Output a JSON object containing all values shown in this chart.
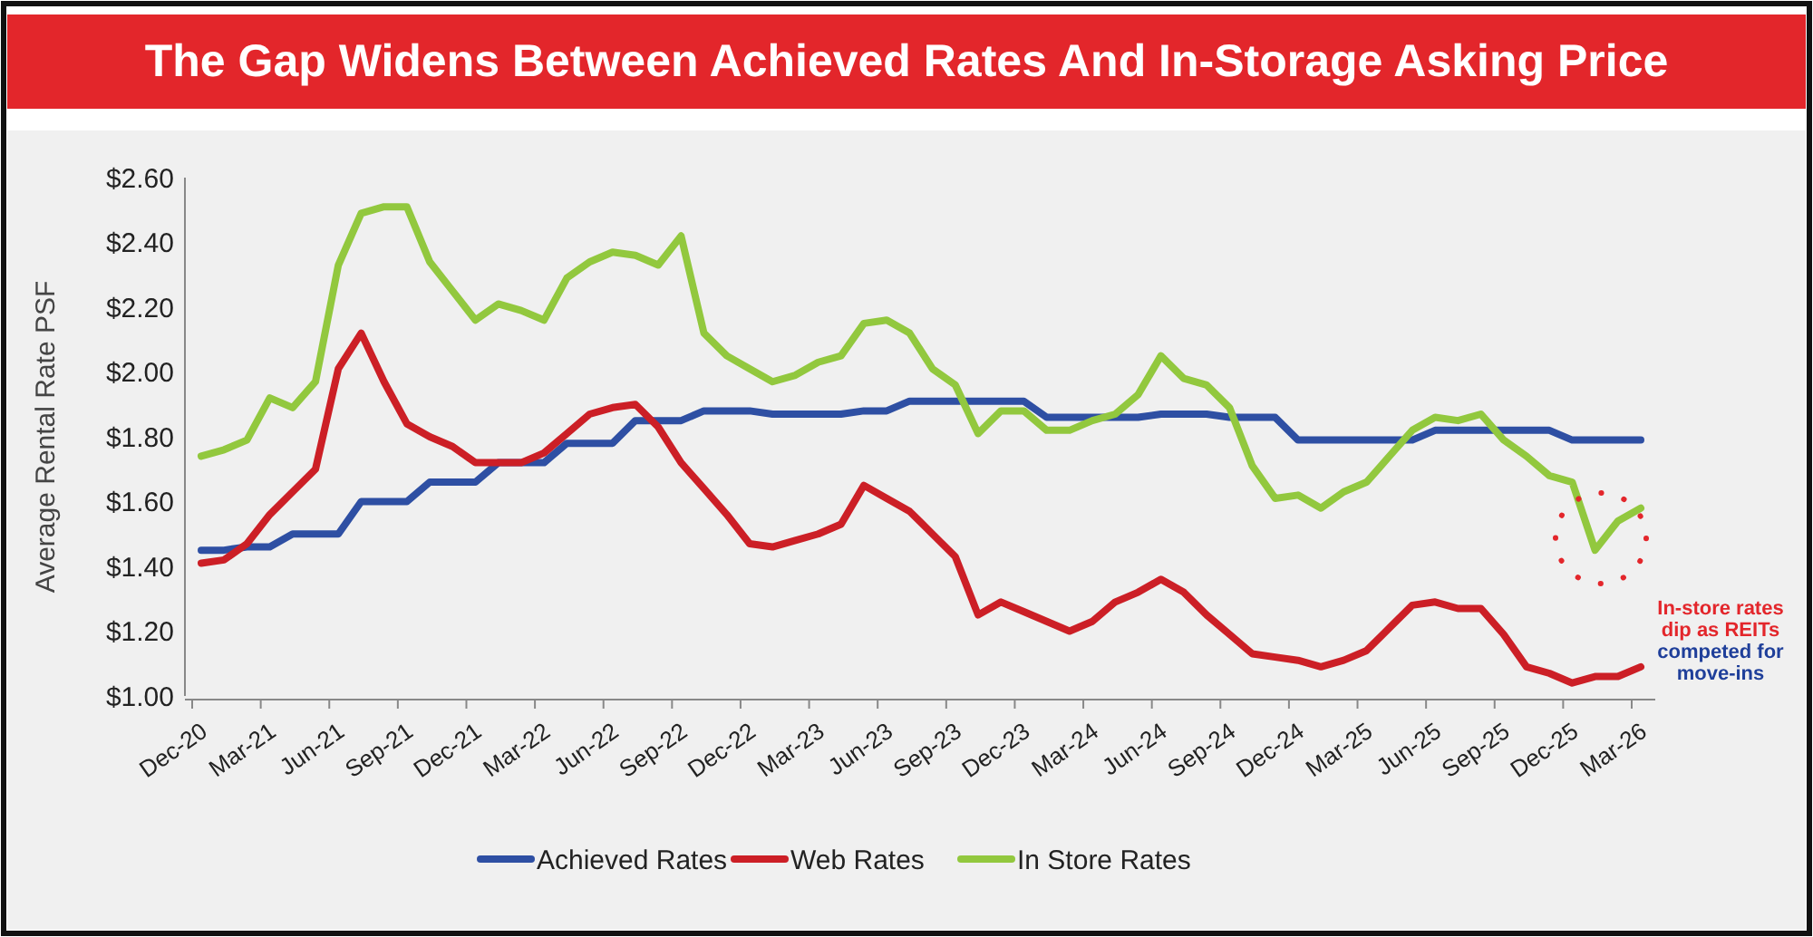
{
  "chart_data": {
    "type": "line",
    "title": "The Gap Widens Between Achieved Rates And In-Storage Asking Price",
    "ylabel": "Average Rental Rate PSF",
    "categories": [
      "Dec-20",
      null,
      null,
      "Mar-21",
      null,
      null,
      "Jun-21",
      null,
      null,
      "Sep-21",
      null,
      null,
      "Dec-21",
      null,
      null,
      "Mar-22",
      null,
      null,
      "Jun-22",
      null,
      null,
      "Sep-22",
      null,
      null,
      "Dec-22",
      null,
      null,
      "Mar-23",
      null,
      null,
      "Jun-23",
      null,
      null,
      "Sep-23",
      null,
      null,
      "Dec-23",
      null,
      null,
      "Mar-24",
      null,
      null,
      "Jun-24",
      null,
      null,
      "Sep-24",
      null,
      null,
      "Dec-24",
      null,
      null,
      "Mar-25",
      null,
      null,
      "Jun-25",
      null,
      null,
      "Sep-25",
      null,
      null,
      "Dec-25",
      null,
      null,
      "Mar-26"
    ],
    "series": [
      {
        "name": "Achieved Rates",
        "color": "#2e4fa3",
        "values": [
          1.45,
          1.45,
          1.46,
          1.46,
          1.5,
          1.5,
          1.5,
          1.6,
          1.6,
          1.6,
          1.66,
          1.66,
          1.66,
          1.72,
          1.72,
          1.72,
          1.78,
          1.78,
          1.78,
          1.85,
          1.85,
          1.85,
          1.88,
          1.88,
          1.88,
          1.87,
          1.87,
          1.87,
          1.87,
          1.88,
          1.88,
          1.91,
          1.91,
          1.91,
          1.91,
          1.91,
          1.91,
          1.86,
          1.86,
          1.86,
          1.86,
          1.86,
          1.87,
          1.87,
          1.87,
          1.86,
          1.86,
          1.86,
          1.79,
          1.79,
          1.79,
          1.79,
          1.79,
          1.79,
          1.82,
          1.82,
          1.82,
          1.82,
          1.82,
          1.82,
          1.79,
          1.79,
          1.79,
          1.79
        ]
      },
      {
        "name": "Web Rates",
        "color": "#cc1f26",
        "values": [
          1.41,
          1.42,
          1.47,
          1.56,
          1.63,
          1.7,
          2.01,
          2.12,
          1.97,
          1.84,
          1.8,
          1.77,
          1.72,
          1.72,
          1.72,
          1.75,
          1.81,
          1.87,
          1.89,
          1.9,
          1.83,
          1.72,
          1.64,
          1.56,
          1.47,
          1.46,
          1.48,
          1.5,
          1.53,
          1.65,
          1.61,
          1.57,
          1.5,
          1.43,
          1.25,
          1.29,
          1.26,
          1.23,
          1.2,
          1.23,
          1.29,
          1.32,
          1.36,
          1.32,
          1.25,
          1.19,
          1.13,
          1.12,
          1.11,
          1.09,
          1.11,
          1.14,
          1.21,
          1.28,
          1.29,
          1.27,
          1.27,
          1.19,
          1.09,
          1.07,
          1.04,
          1.06,
          1.06,
          1.09
        ]
      },
      {
        "name": "In Store Rates",
        "color": "#92c83e",
        "values": [
          1.74,
          1.76,
          1.79,
          1.92,
          1.89,
          1.97,
          2.33,
          2.49,
          2.51,
          2.51,
          2.34,
          2.25,
          2.16,
          2.21,
          2.19,
          2.16,
          2.29,
          2.34,
          2.37,
          2.36,
          2.33,
          2.42,
          2.12,
          2.05,
          2.01,
          1.97,
          1.99,
          2.03,
          2.05,
          2.15,
          2.16,
          2.12,
          2.01,
          1.96,
          1.81,
          1.88,
          1.88,
          1.82,
          1.82,
          1.85,
          1.87,
          1.93,
          2.05,
          1.98,
          1.96,
          1.89,
          1.71,
          1.61,
          1.62,
          1.58,
          1.63,
          1.66,
          1.74,
          1.82,
          1.86,
          1.85,
          1.87,
          1.79,
          1.74,
          1.68,
          1.66,
          1.45,
          1.54,
          1.58
        ]
      }
    ],
    "ylim": [
      1.0,
      2.6
    ],
    "yticks": [
      {
        "value": 1.0,
        "label": "$1.00"
      },
      {
        "value": 1.2,
        "label": "$1.20"
      },
      {
        "value": 1.4,
        "label": "$1.40"
      },
      {
        "value": 1.6,
        "label": "$1.60"
      },
      {
        "value": 1.8,
        "label": "$1.80"
      },
      {
        "value": 2.0,
        "label": "$2.00"
      },
      {
        "value": 2.2,
        "label": "$2.20"
      },
      {
        "value": 2.4,
        "label": "$2.40"
      },
      {
        "value": 2.6,
        "label": "$2.60"
      }
    ],
    "grid": false,
    "legend": "bottom",
    "marker": "none",
    "line_style": "solid",
    "annotations": [
      "In-store rates dip as REITs competed for move-ins"
    ]
  }
}
